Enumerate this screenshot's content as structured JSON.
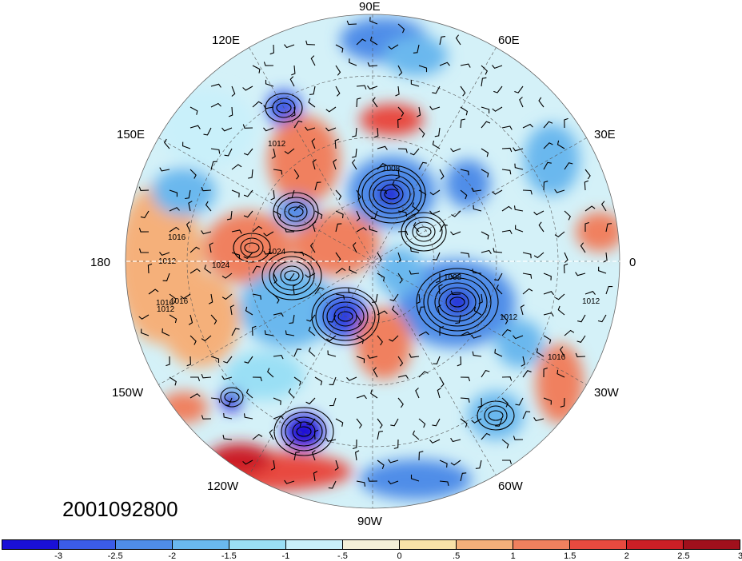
{
  "timestamp": "2001092800",
  "longitude_labels": {
    "e90": "90E",
    "e60": "60E",
    "e30": "30E",
    "zero": "0",
    "w30": "30W",
    "w60": "60W",
    "w90": "90W",
    "w120": "120W",
    "w150": "150W",
    "d180": "180",
    "e150": "150E",
    "e120": "120E"
  },
  "contour_labels": [
    "1008",
    "1012",
    "1016",
    "1024",
    "1024",
    "1012",
    "1016",
    "1012",
    "1016",
    "1008",
    "1012",
    "1016",
    "1012"
  ],
  "colorbar": {
    "colors": [
      "#1a10d6",
      "#3b5ce8",
      "#4f8de8",
      "#6ab8ee",
      "#9adff5",
      "#c9f0fa",
      "#f4f0d8",
      "#f9e2a8",
      "#f5b07a",
      "#f0805e",
      "#e84a3f",
      "#cc1f26",
      "#a0101c"
    ],
    "tick_labels": [
      "-3",
      "-2.5",
      "-2",
      "-1.5",
      "-1",
      "-.5",
      "0",
      ".5",
      "1",
      "1.5",
      "2",
      "2.5",
      "3"
    ]
  },
  "icons": {
    "map": "polar-stereographic-map",
    "barb": "wind-barb-icon"
  }
}
